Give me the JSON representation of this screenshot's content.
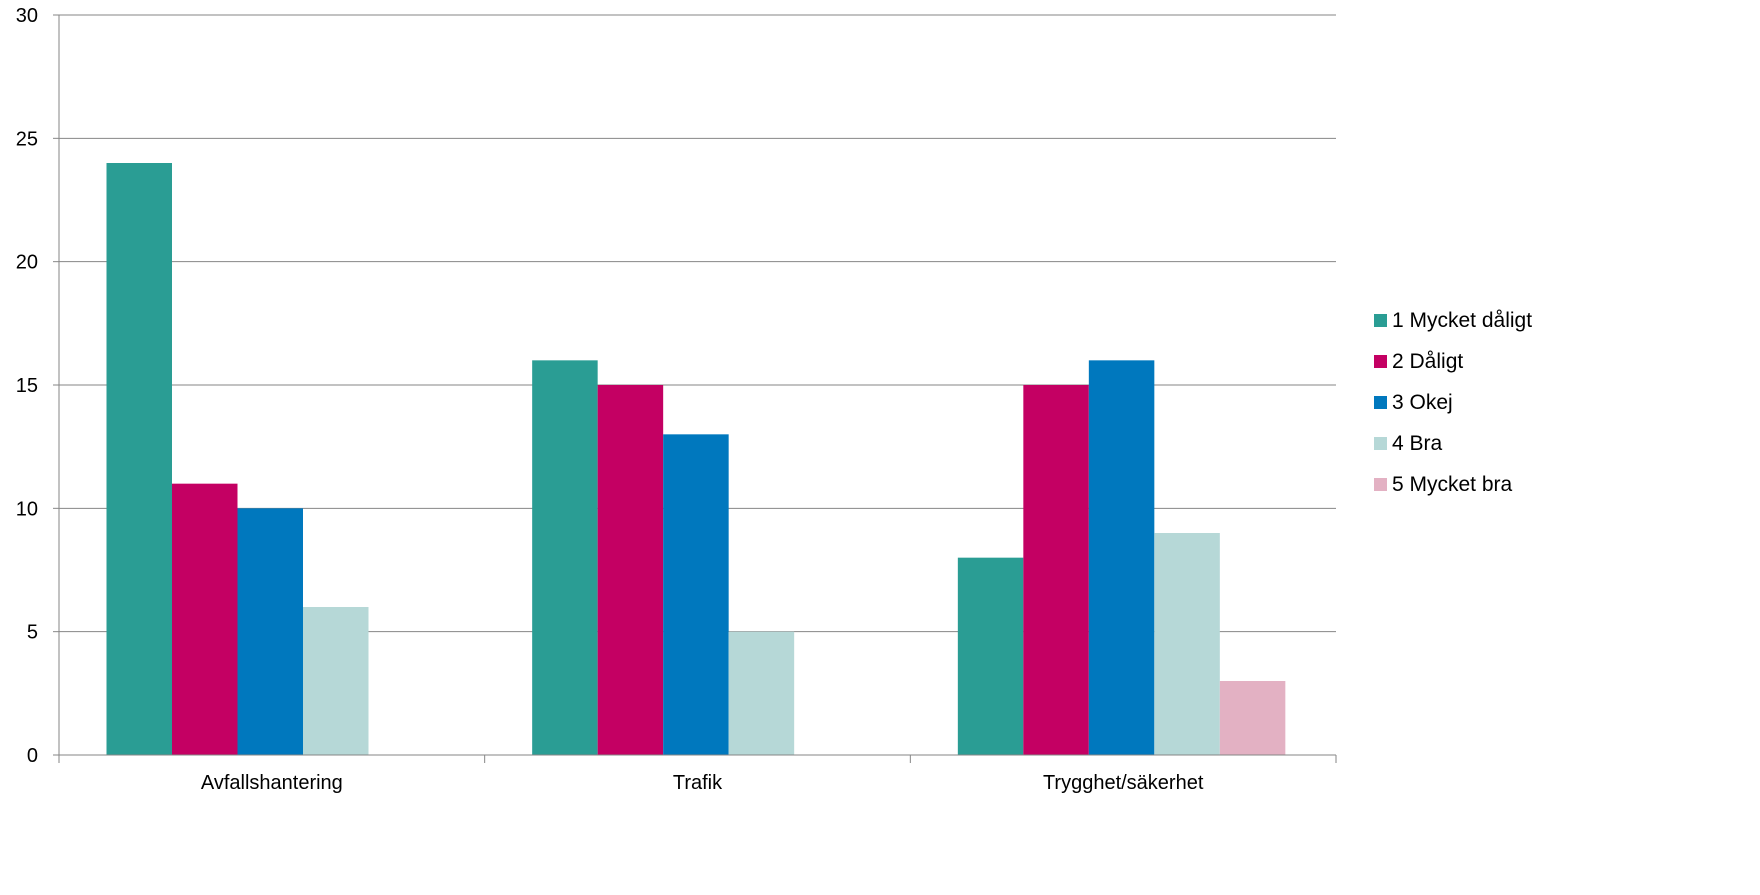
{
  "chart_data": {
    "type": "bar",
    "title": "",
    "xlabel": "",
    "ylabel": "",
    "ylim": [
      0,
      30
    ],
    "yticks": [
      0,
      5,
      10,
      15,
      20,
      25,
      30
    ],
    "grid": true,
    "legend_position": "right",
    "categories": [
      "Avfallshantering",
      "Trafik",
      "Trygghet/säkerhet"
    ],
    "series": [
      {
        "name": "1 Mycket dåligt",
        "color": "#2a9d94",
        "values": [
          24,
          16,
          8
        ]
      },
      {
        "name": "2 Dåligt",
        "color": "#c40063",
        "values": [
          11,
          15,
          15
        ]
      },
      {
        "name": "3 Okej",
        "color": "#0078be",
        "values": [
          10,
          13,
          16
        ]
      },
      {
        "name": "4 Bra",
        "color": "#b6d8d7",
        "values": [
          6,
          5,
          9
        ]
      },
      {
        "name": "5 Mycket bra",
        "color": "#e3b1c3",
        "values": [
          0,
          0,
          3
        ]
      }
    ]
  }
}
